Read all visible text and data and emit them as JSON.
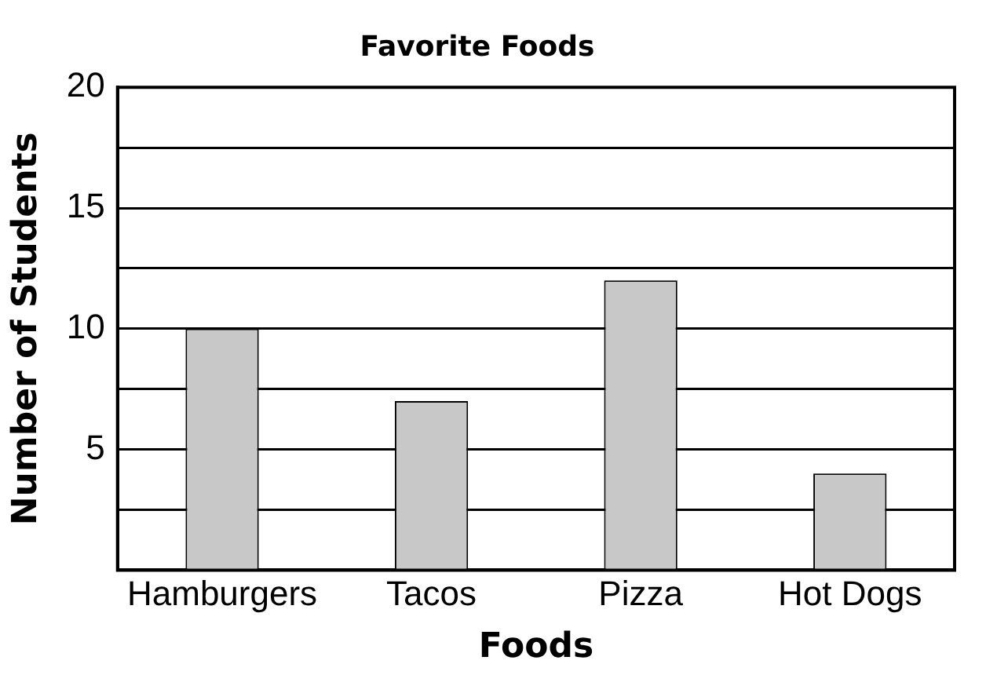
{
  "chart_data": {
    "type": "bar",
    "title": "Favorite Foods",
    "xlabel": "Foods",
    "ylabel": "Number of Students",
    "categories": [
      "Hamburgers",
      "Tacos",
      "Pizza",
      "Hot Dogs"
    ],
    "values": [
      10,
      7,
      12,
      4
    ],
    "color": "#c8c8c8",
    "ylim": [
      0,
      20
    ],
    "yticks": [
      {
        "value": 0,
        "label": null
      },
      {
        "value": 2.5,
        "label": null
      },
      5,
      {
        "value": 7.5,
        "label": null
      },
      10,
      {
        "value": 12.5,
        "label": null
      },
      15,
      {
        "value": 17.5,
        "label": null
      },
      20
    ],
    "grid": "y",
    "legend": false
  }
}
